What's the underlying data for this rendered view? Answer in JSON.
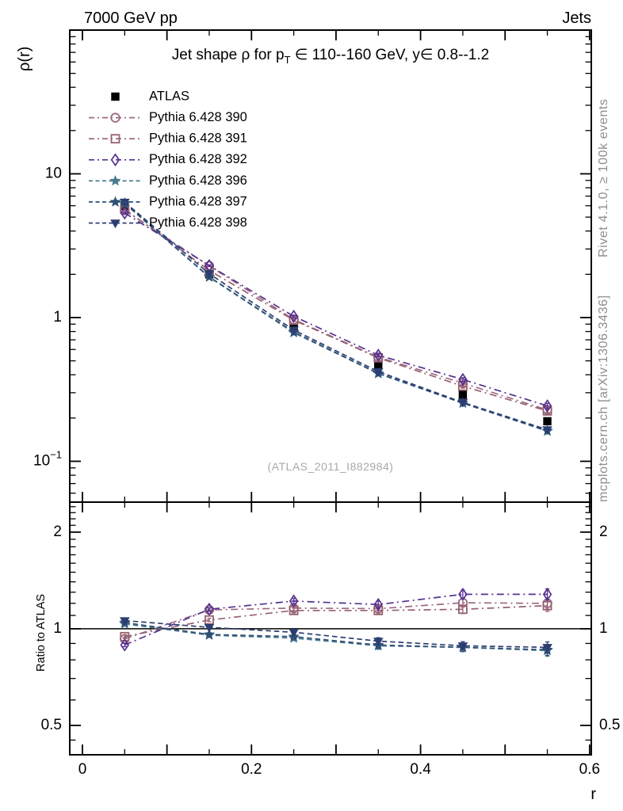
{
  "header": {
    "beam": "7000 GeV pp",
    "category": "Jets"
  },
  "title": {
    "pre": "Jet shape ρ for p",
    "sub": "T",
    "post": " ∈ 110--160 GeV, y∈ 0.8--1.2"
  },
  "axes": {
    "y_label": "ρ(r)",
    "ratio_label": "Ratio to ATLAS",
    "x_label": "r"
  },
  "watermark": {
    "text": "(ATLAS_2011_I882984)"
  },
  "side": {
    "rivet": "Rivet 4.1.0, ≥ 100k events",
    "mcplots": "mcplots.cern.ch [arXiv:1306.3436]"
  },
  "chart_data": {
    "type": "line",
    "title": "Jet shape ρ for pT ∈ 110--160 GeV, y∈ 0.8--1.2",
    "xlabel": "r",
    "ylabel": "ρ(r)",
    "ratio_ylabel": "Ratio to ATLAS",
    "x": [
      0.05,
      0.15,
      0.25,
      0.35,
      0.45,
      0.55
    ],
    "xlim": [
      -0.015,
      0.602
    ],
    "ylim_main": [
      0.052,
      100
    ],
    "ylim_ratio": [
      0.405,
      2.48
    ],
    "log_y_main": true,
    "log_y_ratio": true,
    "xticks": [
      {
        "v": 0,
        "t": "0"
      },
      {
        "v": 0.2,
        "t": "0.2"
      },
      {
        "v": 0.4,
        "t": "0.4"
      },
      {
        "v": 0.6,
        "t": "0.6"
      }
    ],
    "yticks_main": [
      {
        "v": 10,
        "t": "10"
      },
      {
        "v": 1,
        "t": "1"
      },
      {
        "v": 0.1,
        "t": "10",
        "sup": "−1"
      }
    ],
    "yticks_ratio": [
      {
        "v": 2,
        "t": "2"
      },
      {
        "v": 1,
        "t": "1"
      },
      {
        "v": 0.5,
        "t": "0.5"
      }
    ],
    "reference_line_ratio": 1,
    "series": [
      {
        "id": "atlas",
        "name": "ATLAS",
        "marker": "square-filled",
        "color": "#000000",
        "linestyle": "none",
        "values": [
          6.0,
          2.0,
          0.84,
          0.46,
          0.29,
          0.19
        ],
        "ratio": null,
        "rel_err": [
          0.02,
          0.015,
          0.015,
          0.02,
          0.025,
          0.03
        ]
      },
      {
        "id": "py390",
        "name": "Pythia 6.428 390",
        "marker": "circle-open",
        "color": "#9d6a84",
        "linestyle": "dashdot",
        "values": [
          5.58,
          2.29,
          0.97,
          0.53,
          0.35,
          0.228
        ],
        "ratio": [
          0.93,
          1.145,
          1.16,
          1.155,
          1.205,
          1.2
        ],
        "rel_err": [
          0.012,
          0.012,
          0.018,
          0.025,
          0.03,
          0.04
        ]
      },
      {
        "id": "py391",
        "name": "Pythia 6.428 391",
        "marker": "square-open",
        "color": "#97616f",
        "linestyle": "dashdot",
        "values": [
          5.67,
          2.13,
          0.96,
          0.525,
          0.333,
          0.224
        ],
        "ratio": [
          0.945,
          1.065,
          1.14,
          1.14,
          1.15,
          1.18
        ],
        "rel_err": [
          0.012,
          0.012,
          0.018,
          0.025,
          0.03,
          0.04
        ]
      },
      {
        "id": "py392",
        "name": "Pythia 6.428 392",
        "marker": "diamond-open",
        "color": "#55318f",
        "linestyle": "dashdot",
        "values": [
          5.34,
          2.3,
          1.02,
          0.547,
          0.371,
          0.243
        ],
        "ratio": [
          0.89,
          1.15,
          1.22,
          1.19,
          1.28,
          1.28
        ],
        "rel_err": [
          0.012,
          0.012,
          0.018,
          0.025,
          0.03,
          0.04
        ]
      },
      {
        "id": "py396",
        "name": "Pythia 6.428 396",
        "marker": "star-filled",
        "color": "#49798e",
        "linestyle": "dashed",
        "values": [
          6.21,
          1.91,
          0.785,
          0.407,
          0.254,
          0.162
        ],
        "ratio": [
          1.035,
          0.955,
          0.935,
          0.885,
          0.875,
          0.855
        ],
        "rel_err": [
          0.012,
          0.012,
          0.018,
          0.025,
          0.03,
          0.04
        ]
      },
      {
        "id": "py397",
        "name": "Pythia 6.428 397",
        "marker": "star-filled",
        "color": "#2f4f76",
        "linestyle": "dashed",
        "values": [
          6.27,
          1.92,
          0.794,
          0.409,
          0.254,
          0.163
        ],
        "ratio": [
          1.045,
          0.96,
          0.945,
          0.89,
          0.875,
          0.86
        ],
        "rel_err": [
          0.012,
          0.012,
          0.018,
          0.025,
          0.03,
          0.04
        ]
      },
      {
        "id": "py398",
        "name": "Pythia 6.428 398",
        "marker": "triangle-down-filled",
        "color": "#2c3e70",
        "linestyle": "dashed",
        "values": [
          6.36,
          2.02,
          0.819,
          0.421,
          0.257,
          0.166
        ],
        "ratio": [
          1.06,
          1.01,
          0.975,
          0.915,
          0.885,
          0.875
        ],
        "rel_err": [
          0.012,
          0.012,
          0.018,
          0.025,
          0.03,
          0.04
        ]
      }
    ],
    "legend_position": "top-left-inside"
  }
}
